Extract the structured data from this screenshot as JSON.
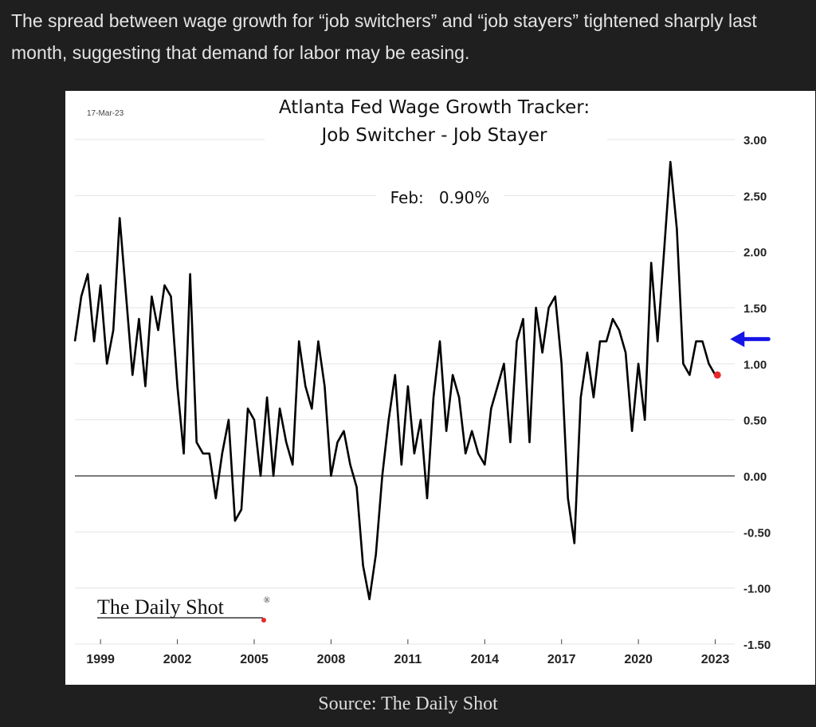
{
  "caption": "The spread between wage growth for “job switchers” and “job stayers” tightened sharply last month, suggesting that demand for labor may be easing.",
  "source": "Source: The Daily Shot",
  "chart_data": {
    "type": "line",
    "date_stamp": "17-Mar-23",
    "title_line1": "Atlanta Fed Wage Growth Tracker:",
    "title_line2": "Job Switcher - Job Stayer",
    "annotation": "Feb:   0.90%",
    "brand": "The Daily Shot",
    "brand_mark": "®",
    "ylim": [
      -1.5,
      3.0
    ],
    "y_ticks": [
      "3.00",
      "2.50",
      "2.00",
      "1.50",
      "1.00",
      "0.50",
      "0.00",
      "-0.50",
      "-1.00",
      "-1.50"
    ],
    "x_ticks": [
      "1999",
      "2002",
      "2005",
      "2008",
      "2011",
      "2014",
      "2017",
      "2020",
      "2023"
    ],
    "grid": true,
    "zero_line": true,
    "line_color": "#000000",
    "last_point_color": "#e8292b",
    "arrow_color": "#1515e6",
    "series": [
      {
        "x": [
          "1998-01",
          "1998-04",
          "1998-07",
          "1998-10",
          "1999-01",
          "1999-04",
          "1999-07",
          "1999-10",
          "2000-01",
          "2000-04",
          "2000-07",
          "2000-10",
          "2001-01",
          "2001-04",
          "2001-07",
          "2001-10",
          "2002-01",
          "2002-04",
          "2002-07",
          "2002-10",
          "2003-01",
          "2003-04",
          "2003-07",
          "2003-10",
          "2004-01",
          "2004-04",
          "2004-07",
          "2004-10",
          "2005-01",
          "2005-04",
          "2005-07",
          "2005-10",
          "2006-01",
          "2006-04",
          "2006-07",
          "2006-10",
          "2007-01",
          "2007-04",
          "2007-07",
          "2007-10",
          "2008-01",
          "2008-04",
          "2008-07",
          "2008-10",
          "2009-01",
          "2009-04",
          "2009-07",
          "2009-10",
          "2010-01",
          "2010-04",
          "2010-07",
          "2010-10",
          "2011-01",
          "2011-04",
          "2011-07",
          "2011-10",
          "2012-01",
          "2012-04",
          "2012-07",
          "2012-10",
          "2013-01",
          "2013-04",
          "2013-07",
          "2013-10",
          "2014-01",
          "2014-04",
          "2014-07",
          "2014-10",
          "2015-01",
          "2015-04",
          "2015-07",
          "2015-10",
          "2016-01",
          "2016-04",
          "2016-07",
          "2016-10",
          "2017-01",
          "2017-04",
          "2017-07",
          "2017-10",
          "2018-01",
          "2018-04",
          "2018-07",
          "2018-10",
          "2019-01",
          "2019-04",
          "2019-07",
          "2019-10",
          "2020-01",
          "2020-04",
          "2020-07",
          "2020-10",
          "2021-01",
          "2021-04",
          "2021-07",
          "2021-10",
          "2022-01",
          "2022-04",
          "2022-07",
          "2022-10",
          "2023-01",
          "2023-02"
        ],
        "values": [
          1.2,
          1.6,
          1.8,
          1.2,
          1.7,
          1.0,
          1.3,
          2.3,
          1.6,
          0.9,
          1.4,
          0.8,
          1.6,
          1.3,
          1.7,
          1.6,
          0.8,
          0.2,
          1.8,
          0.3,
          0.2,
          0.2,
          -0.2,
          0.2,
          0.5,
          -0.4,
          -0.3,
          0.6,
          0.5,
          0.0,
          0.7,
          0.0,
          0.6,
          0.3,
          0.1,
          1.2,
          0.8,
          0.6,
          1.2,
          0.8,
          0.0,
          0.3,
          0.4,
          0.1,
          -0.1,
          -0.8,
          -1.1,
          -0.7,
          0.0,
          0.5,
          0.9,
          0.1,
          0.8,
          0.2,
          0.5,
          -0.2,
          0.7,
          1.2,
          0.4,
          0.9,
          0.7,
          0.2,
          0.4,
          0.2,
          0.1,
          0.6,
          0.8,
          1.0,
          0.3,
          1.2,
          1.4,
          0.3,
          1.5,
          1.1,
          1.5,
          1.6,
          1.0,
          -0.2,
          -0.6,
          0.7,
          1.1,
          0.7,
          1.2,
          1.2,
          1.4,
          1.3,
          1.1,
          0.4,
          1.0,
          0.5,
          1.9,
          1.2,
          2.0,
          2.8,
          2.2,
          1.0,
          0.9,
          1.2,
          1.2,
          1.0,
          0.9,
          0.9
        ],
        "approximate": true
      }
    ]
  }
}
